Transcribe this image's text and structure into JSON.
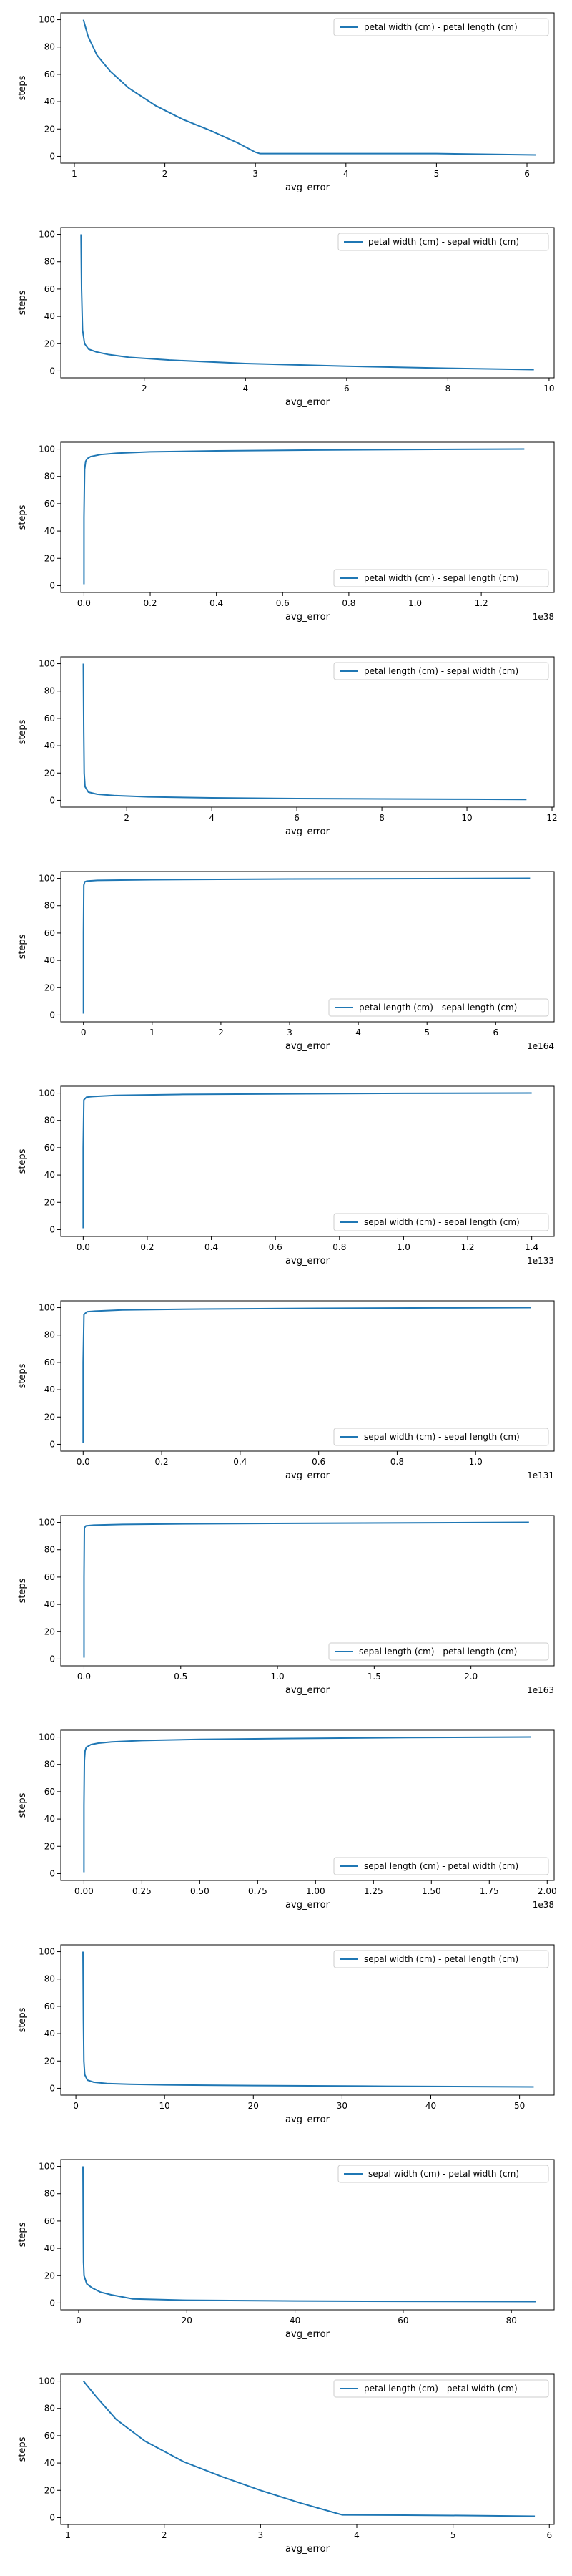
{
  "colors": {
    "series": "#1f77b4",
    "axis": "#000000",
    "legend_border": "#cccccc"
  },
  "chart_data": [
    {
      "type": "line",
      "xlabel": "avg_error",
      "ylabel": "steps",
      "xlim": [
        0.85,
        6.3
      ],
      "ylim": [
        -5,
        105
      ],
      "x_offset": "",
      "xticks": [
        1,
        2,
        3,
        4,
        5,
        6
      ],
      "yticks": [
        0,
        20,
        40,
        60,
        80,
        100
      ],
      "legend": "upper right",
      "series": [
        {
          "name": "petal width (cm) - petal length (cm)",
          "x": [
            1.1,
            1.15,
            1.25,
            1.4,
            1.6,
            1.9,
            2.2,
            2.5,
            2.8,
            3.0,
            3.05,
            4.0,
            5.0,
            6.1
          ],
          "y": [
            100,
            88,
            74,
            62,
            50,
            37,
            27,
            19,
            10,
            3,
            2,
            2,
            2,
            1
          ]
        }
      ]
    },
    {
      "type": "line",
      "xlabel": "avg_error",
      "ylabel": "steps",
      "xlim": [
        0.35,
        10.1
      ],
      "ylim": [
        -5,
        105
      ],
      "x_offset": "",
      "xticks": [
        2,
        4,
        6,
        8,
        10
      ],
      "yticks": [
        0,
        20,
        40,
        60,
        80,
        100
      ],
      "legend": "upper right",
      "series": [
        {
          "name": "petal width (cm) - sepal width (cm)",
          "x": [
            0.75,
            0.76,
            0.78,
            0.82,
            0.9,
            1.05,
            1.3,
            1.7,
            2.5,
            4.0,
            6.0,
            8.0,
            9.7
          ],
          "y": [
            100,
            60,
            30,
            20,
            16,
            14,
            12,
            10,
            8,
            5.5,
            3.5,
            2,
            1
          ]
        }
      ]
    },
    {
      "type": "line",
      "xlabel": "avg_error",
      "ylabel": "steps",
      "xlim": [
        -0.07,
        1.42
      ],
      "ylim": [
        -5,
        105
      ],
      "x_offset": "1e38",
      "xticks": [
        0.0,
        0.2,
        0.4,
        0.6,
        0.8,
        1.0,
        1.2
      ],
      "yticks": [
        0,
        20,
        40,
        60,
        80,
        100
      ],
      "legend": "lower right",
      "series": [
        {
          "name": "petal width (cm) - sepal length (cm)",
          "x": [
            0.0,
            0.0,
            0.002,
            0.005,
            0.01,
            0.02,
            0.05,
            0.1,
            0.2,
            0.4,
            0.7,
            1.0,
            1.33
          ],
          "y": [
            1,
            50,
            85,
            91,
            93,
            94.5,
            96,
            97,
            98,
            98.7,
            99.3,
            99.7,
            100
          ]
        }
      ]
    },
    {
      "type": "line",
      "xlabel": "avg_error",
      "ylabel": "steps",
      "xlim": [
        0.45,
        12.05
      ],
      "ylim": [
        -5,
        105
      ],
      "x_offset": "",
      "xticks": [
        2,
        4,
        6,
        8,
        10,
        12
      ],
      "yticks": [
        0,
        20,
        40,
        60,
        80,
        100
      ],
      "legend": "upper right",
      "series": [
        {
          "name": "petal length (cm) - sepal width (cm)",
          "x": [
            0.98,
            0.99,
            1.0,
            1.02,
            1.1,
            1.3,
            1.7,
            2.5,
            4.0,
            6.0,
            8.0,
            10.0,
            11.4
          ],
          "y": [
            100,
            50,
            20,
            10,
            6,
            4.5,
            3.5,
            2.5,
            1.8,
            1.3,
            1,
            0.8,
            0.6
          ]
        }
      ]
    },
    {
      "type": "line",
      "xlabel": "avg_error",
      "ylabel": "steps",
      "xlim": [
        -0.33,
        6.85
      ],
      "ylim": [
        -5,
        105
      ],
      "x_offset": "1e164",
      "xticks": [
        0,
        1,
        2,
        3,
        4,
        5,
        6
      ],
      "yticks": [
        0,
        20,
        40,
        60,
        80,
        100
      ],
      "legend": "lower right",
      "series": [
        {
          "name": "petal length (cm) - sepal length (cm)",
          "x": [
            0.0,
            0.0,
            0.005,
            0.02,
            0.05,
            0.2,
            1.0,
            3.0,
            6.5
          ],
          "y": [
            1,
            60,
            95,
            97.5,
            98,
            98.5,
            99,
            99.5,
            100
          ]
        }
      ]
    },
    {
      "type": "line",
      "xlabel": "avg_error",
      "ylabel": "steps",
      "xlim": [
        -0.07,
        1.47
      ],
      "ylim": [
        -5,
        105
      ],
      "x_offset": "1e133",
      "xticks": [
        0.0,
        0.2,
        0.4,
        0.6,
        0.8,
        1.0,
        1.2,
        1.4
      ],
      "yticks": [
        0,
        20,
        40,
        60,
        80,
        100
      ],
      "legend": "lower right",
      "series": [
        {
          "name": "sepal width (cm) - sepal length (cm)",
          "x": [
            0.0,
            0.0,
            0.002,
            0.01,
            0.03,
            0.1,
            0.3,
            0.7,
            1.0,
            1.4
          ],
          "y": [
            1,
            60,
            95,
            97,
            97.5,
            98.3,
            99,
            99.5,
            99.8,
            100
          ]
        }
      ]
    },
    {
      "type": "line",
      "xlabel": "avg_error",
      "ylabel": "steps",
      "xlim": [
        -0.057,
        1.2
      ],
      "ylim": [
        -5,
        105
      ],
      "x_offset": "1e131",
      "xticks": [
        0.0,
        0.2,
        0.4,
        0.6,
        0.8,
        1.0
      ],
      "yticks": [
        0,
        20,
        40,
        60,
        80,
        100
      ],
      "legend": "lower right",
      "series": [
        {
          "name": "sepal width (cm) - sepal length (cm)",
          "x": [
            0.0,
            0.0,
            0.002,
            0.01,
            0.03,
            0.1,
            0.3,
            0.6,
            0.9,
            1.14
          ],
          "y": [
            1,
            60,
            95,
            97,
            97.5,
            98.3,
            99,
            99.5,
            99.8,
            100
          ]
        }
      ]
    },
    {
      "type": "line",
      "xlabel": "avg_error",
      "ylabel": "steps",
      "xlim": [
        -0.12,
        2.43
      ],
      "ylim": [
        -5,
        105
      ],
      "x_offset": "1e163",
      "xticks": [
        0.0,
        0.5,
        1.0,
        1.5,
        2.0
      ],
      "yticks": [
        0,
        20,
        40,
        60,
        80,
        100
      ],
      "legend": "lower right",
      "series": [
        {
          "name": "sepal length (cm) - petal length (cm)",
          "x": [
            0.0,
            0.0,
            0.002,
            0.01,
            0.05,
            0.2,
            0.6,
            1.2,
            1.8,
            2.3
          ],
          "y": [
            1,
            60,
            96,
            97.5,
            98,
            98.5,
            99,
            99.4,
            99.7,
            100
          ]
        }
      ]
    },
    {
      "type": "line",
      "xlabel": "avg_error",
      "ylabel": "steps",
      "xlim": [
        -0.1,
        2.03
      ],
      "ylim": [
        -5,
        105
      ],
      "x_offset": "1e38",
      "xticks": [
        0.0,
        0.25,
        0.5,
        0.75,
        1.0,
        1.25,
        1.5,
        1.75,
        2.0
      ],
      "yticks": [
        0,
        20,
        40,
        60,
        80,
        100
      ],
      "legend": "lower right",
      "series": [
        {
          "name": "sepal length (cm) - petal width (cm)",
          "x": [
            0.0,
            0.0,
            0.002,
            0.005,
            0.01,
            0.03,
            0.06,
            0.12,
            0.25,
            0.5,
            0.9,
            1.4,
            1.93
          ],
          "y": [
            1,
            50,
            83,
            90,
            92.5,
            94.5,
            95.5,
            96.5,
            97.5,
            98.3,
            99,
            99.6,
            100
          ]
        }
      ]
    },
    {
      "type": "line",
      "xlabel": "avg_error",
      "ylabel": "steps",
      "xlim": [
        -1.7,
        53.9
      ],
      "ylim": [
        -5,
        105
      ],
      "x_offset": "",
      "xticks": [
        0,
        10,
        20,
        30,
        40,
        50
      ],
      "yticks": [
        0,
        20,
        40,
        60,
        80,
        100
      ],
      "legend": "upper right",
      "series": [
        {
          "name": "sepal width (cm) - petal length (cm)",
          "x": [
            0.8,
            0.85,
            0.9,
            1.0,
            1.3,
            2.0,
            3.5,
            6.0,
            10.0,
            20.0,
            35.0,
            51.6
          ],
          "y": [
            100,
            50,
            20,
            10,
            6,
            4.5,
            3.5,
            3,
            2.5,
            2,
            1.5,
            1
          ]
        }
      ]
    },
    {
      "type": "line",
      "xlabel": "avg_error",
      "ylabel": "steps",
      "xlim": [
        -3.3,
        87.9
      ],
      "ylim": [
        -5,
        105
      ],
      "x_offset": "",
      "xticks": [
        0,
        20,
        40,
        60,
        80
      ],
      "yticks": [
        0,
        20,
        40,
        60,
        80,
        100
      ],
      "legend": "upper right",
      "series": [
        {
          "name": "sepal width (cm) - petal width (cm)",
          "x": [
            0.8,
            0.85,
            0.9,
            1.0,
            1.5,
            2.5,
            4.0,
            6.0,
            10.0,
            20.0,
            40.0,
            60.0,
            84.5
          ],
          "y": [
            100,
            60,
            30,
            20,
            14,
            11,
            8,
            6,
            3,
            2,
            1.5,
            1.2,
            1
          ]
        }
      ]
    },
    {
      "type": "line",
      "xlabel": "avg_error",
      "ylabel": "steps",
      "xlim": [
        0.925,
        6.05
      ],
      "ylim": [
        -5,
        105
      ],
      "x_offset": "",
      "xticks": [
        1,
        2,
        3,
        4,
        5,
        6
      ],
      "yticks": [
        0,
        20,
        40,
        60,
        80,
        100
      ],
      "legend": "upper right",
      "series": [
        {
          "name": "petal length (cm) - petal width (cm)",
          "x": [
            1.16,
            1.3,
            1.5,
            1.8,
            2.2,
            2.6,
            3.0,
            3.4,
            3.8,
            3.85,
            4.5,
            5.2,
            5.85
          ],
          "y": [
            100,
            88,
            72,
            56,
            41,
            30,
            20,
            11,
            3,
            2,
            1.8,
            1.5,
            1
          ]
        }
      ]
    }
  ]
}
